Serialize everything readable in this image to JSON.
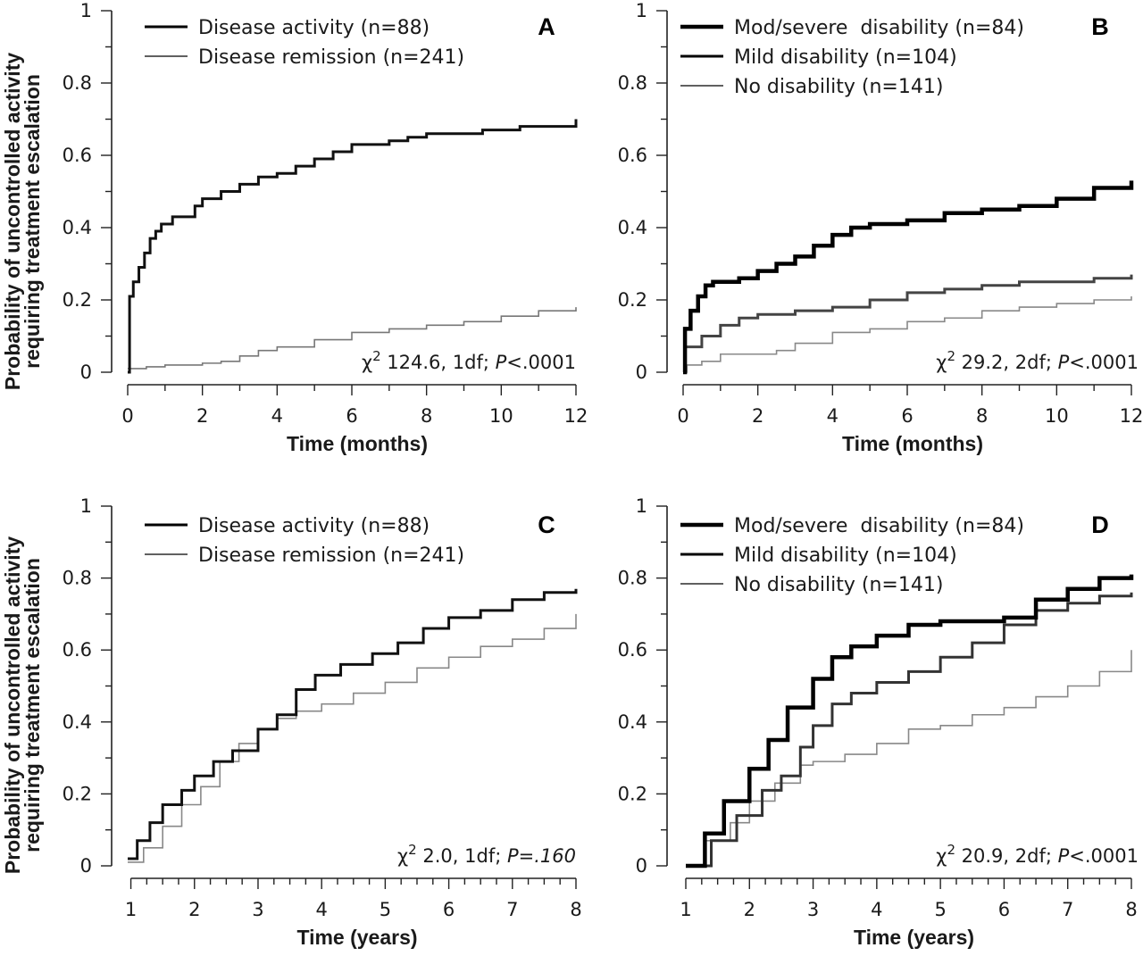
{
  "ylabel_line1": "Probability of uncontrolled activity",
  "ylabel_line2": "requiring treatment escalation",
  "chart_data": [
    {
      "type": "line",
      "step": true,
      "panel": "A",
      "xlabel": "Time (months)",
      "xlim": [
        0,
        12
      ],
      "ylim": [
        0,
        1
      ],
      "xticks": [
        0,
        2,
        4,
        6,
        8,
        10,
        12
      ],
      "yticks": [
        0,
        0.2,
        0.4,
        0.6,
        0.8,
        1
      ],
      "legend_position": "top-left",
      "series": [
        {
          "name": "Disease activity (n=88)",
          "color": "#111111",
          "weight": "thick",
          "x": [
            0,
            0.05,
            0.15,
            0.3,
            0.45,
            0.6,
            0.75,
            0.9,
            1.2,
            1.8,
            2.0,
            2.5,
            3.0,
            3.5,
            4.0,
            4.5,
            5.0,
            5.5,
            6.0,
            7.0,
            7.5,
            8.0,
            9.5,
            10.5,
            12.0
          ],
          "y": [
            0,
            0.21,
            0.25,
            0.29,
            0.33,
            0.37,
            0.39,
            0.41,
            0.43,
            0.46,
            0.48,
            0.5,
            0.52,
            0.54,
            0.55,
            0.57,
            0.59,
            0.61,
            0.63,
            0.64,
            0.65,
            0.66,
            0.67,
            0.68,
            0.7
          ]
        },
        {
          "name": "Disease remission (n=241)",
          "color": "#777777",
          "weight": "thin",
          "x": [
            0,
            0.5,
            1.0,
            2.0,
            2.5,
            3.0,
            3.5,
            4.0,
            5.0,
            6.0,
            7.0,
            8.0,
            9.0,
            10.0,
            11.0,
            12.0
          ],
          "y": [
            0.01,
            0.015,
            0.02,
            0.025,
            0.03,
            0.045,
            0.06,
            0.07,
            0.09,
            0.11,
            0.12,
            0.13,
            0.14,
            0.155,
            0.17,
            0.18
          ]
        }
      ],
      "annotation": {
        "chi": "χ",
        "sup": "2",
        "body": " 124.6,  1df; ",
        "p_italic": "P",
        "p_rest": "<.0001"
      }
    },
    {
      "type": "line",
      "step": true,
      "panel": "B",
      "xlabel": "Time (months)",
      "xlim": [
        0,
        12
      ],
      "ylim": [
        0,
        1
      ],
      "xticks": [
        0,
        2,
        4,
        6,
        8,
        10,
        12
      ],
      "yticks": [
        0,
        0.2,
        0.4,
        0.6,
        0.8,
        1
      ],
      "legend_position": "top-left",
      "series": [
        {
          "name": "Mod/severe  disability (n=84)",
          "color": "#000000",
          "weight": "thickest",
          "x": [
            0,
            0.05,
            0.2,
            0.4,
            0.6,
            0.8,
            1.5,
            2.0,
            2.5,
            3.0,
            3.5,
            4.0,
            4.5,
            5.0,
            6.0,
            7.0,
            8.0,
            9.0,
            10.0,
            11.0,
            12.0
          ],
          "y": [
            0,
            0.12,
            0.17,
            0.21,
            0.24,
            0.25,
            0.26,
            0.28,
            0.3,
            0.32,
            0.35,
            0.38,
            0.4,
            0.41,
            0.42,
            0.44,
            0.45,
            0.46,
            0.48,
            0.51,
            0.53
          ]
        },
        {
          "name": "Mild disability (n=104)",
          "color": "#444444",
          "weight": "thick",
          "x": [
            0,
            0.05,
            0.5,
            1.0,
            1.5,
            2.0,
            3.0,
            4.0,
            5.0,
            6.0,
            7.0,
            8.0,
            9.0,
            10.0,
            11.0,
            12.0
          ],
          "y": [
            0,
            0.07,
            0.1,
            0.13,
            0.15,
            0.16,
            0.17,
            0.18,
            0.2,
            0.22,
            0.23,
            0.24,
            0.25,
            0.25,
            0.26,
            0.27
          ]
        },
        {
          "name": "No disability (n=141)",
          "color": "#888888",
          "weight": "thin",
          "x": [
            0,
            0.1,
            0.5,
            1.0,
            2.0,
            2.5,
            3.0,
            4.0,
            5.0,
            6.0,
            7.0,
            8.0,
            9.0,
            10.0,
            11.0,
            12.0
          ],
          "y": [
            0,
            0.02,
            0.03,
            0.05,
            0.05,
            0.06,
            0.08,
            0.11,
            0.12,
            0.14,
            0.15,
            0.17,
            0.18,
            0.19,
            0.2,
            0.21
          ]
        }
      ],
      "annotation": {
        "chi": "χ",
        "sup": "2",
        "body": " 29.2,  2df; ",
        "p_italic": "P",
        "p_rest": "<.0001"
      }
    },
    {
      "type": "line",
      "step": true,
      "panel": "C",
      "xlabel": "Time (years)",
      "xlim": [
        0.95,
        8
      ],
      "ylim": [
        0,
        1
      ],
      "xticks": [
        1,
        2,
        3,
        4,
        5,
        6,
        7,
        8
      ],
      "yticks": [
        0,
        0.2,
        0.4,
        0.6,
        0.8,
        1
      ],
      "legend_position": "top-left",
      "series": [
        {
          "name": "Disease activity (n=88)",
          "color": "#111111",
          "weight": "thick",
          "x": [
            0.95,
            1.1,
            1.3,
            1.5,
            1.8,
            2.0,
            2.3,
            2.6,
            3.0,
            3.3,
            3.6,
            3.9,
            4.3,
            4.8,
            5.2,
            5.6,
            6.0,
            6.5,
            7.0,
            7.5,
            8.0
          ],
          "y": [
            0.02,
            0.07,
            0.12,
            0.17,
            0.21,
            0.25,
            0.29,
            0.32,
            0.38,
            0.42,
            0.49,
            0.53,
            0.56,
            0.59,
            0.62,
            0.66,
            0.69,
            0.71,
            0.74,
            0.76,
            0.77
          ]
        },
        {
          "name": "Disease remission (n=241)",
          "color": "#888888",
          "weight": "thin",
          "x": [
            0.95,
            1.2,
            1.5,
            1.8,
            2.1,
            2.4,
            2.7,
            3.0,
            3.3,
            3.6,
            4.0,
            4.5,
            5.0,
            5.5,
            6.0,
            6.5,
            7.0,
            7.5,
            8.0
          ],
          "y": [
            0.01,
            0.05,
            0.11,
            0.17,
            0.22,
            0.29,
            0.34,
            0.38,
            0.41,
            0.43,
            0.45,
            0.48,
            0.51,
            0.55,
            0.58,
            0.61,
            0.63,
            0.66,
            0.7
          ]
        }
      ],
      "annotation": {
        "chi": "χ",
        "sup": "2",
        "body": " 2.0,  1df; ",
        "p_italic": "P=.160",
        "p_rest": ""
      }
    },
    {
      "type": "line",
      "step": true,
      "panel": "D",
      "xlabel": "Time (years)",
      "xlim": [
        1,
        8
      ],
      "ylim": [
        0,
        1
      ],
      "xticks": [
        1,
        2,
        3,
        4,
        5,
        6,
        7,
        8
      ],
      "yticks": [
        0,
        0.2,
        0.4,
        0.6,
        0.8,
        1
      ],
      "legend_position": "top-left",
      "series": [
        {
          "name": "Mod/severe  disability (n=84)",
          "color": "#000000",
          "weight": "thickest",
          "x": [
            1.0,
            1.3,
            1.6,
            2.0,
            2.3,
            2.6,
            3.0,
            3.3,
            3.6,
            4.0,
            4.5,
            5.0,
            5.5,
            6.0,
            6.5,
            7.0,
            7.5,
            8.0
          ],
          "y": [
            0,
            0.09,
            0.18,
            0.27,
            0.35,
            0.44,
            0.52,
            0.58,
            0.61,
            0.64,
            0.67,
            0.68,
            0.68,
            0.69,
            0.74,
            0.77,
            0.8,
            0.81
          ]
        },
        {
          "name": "Mild disability (n=104)",
          "color": "#333333",
          "weight": "thick",
          "x": [
            1.0,
            1.4,
            1.8,
            2.2,
            2.5,
            2.8,
            3.0,
            3.3,
            3.6,
            4.0,
            4.5,
            5.0,
            5.5,
            6.0,
            6.5,
            7.0,
            7.5,
            8.0
          ],
          "y": [
            0,
            0.07,
            0.14,
            0.21,
            0.25,
            0.33,
            0.39,
            0.45,
            0.48,
            0.51,
            0.54,
            0.58,
            0.62,
            0.67,
            0.71,
            0.73,
            0.75,
            0.76
          ]
        },
        {
          "name": "No disability (n=141)",
          "color": "#888888",
          "weight": "thin",
          "x": [
            1.0,
            1.3,
            1.7,
            2.0,
            2.4,
            2.8,
            3.0,
            3.5,
            4.0,
            4.5,
            5.0,
            5.5,
            6.0,
            6.5,
            7.0,
            7.5,
            8.0
          ],
          "y": [
            0,
            0.07,
            0.12,
            0.18,
            0.23,
            0.28,
            0.29,
            0.31,
            0.34,
            0.38,
            0.39,
            0.42,
            0.44,
            0.47,
            0.5,
            0.54,
            0.6
          ]
        }
      ],
      "annotation": {
        "chi": "χ",
        "sup": "2",
        "body": " 20.9,  2df; ",
        "p_italic": "P",
        "p_rest": "<.0001"
      }
    }
  ]
}
